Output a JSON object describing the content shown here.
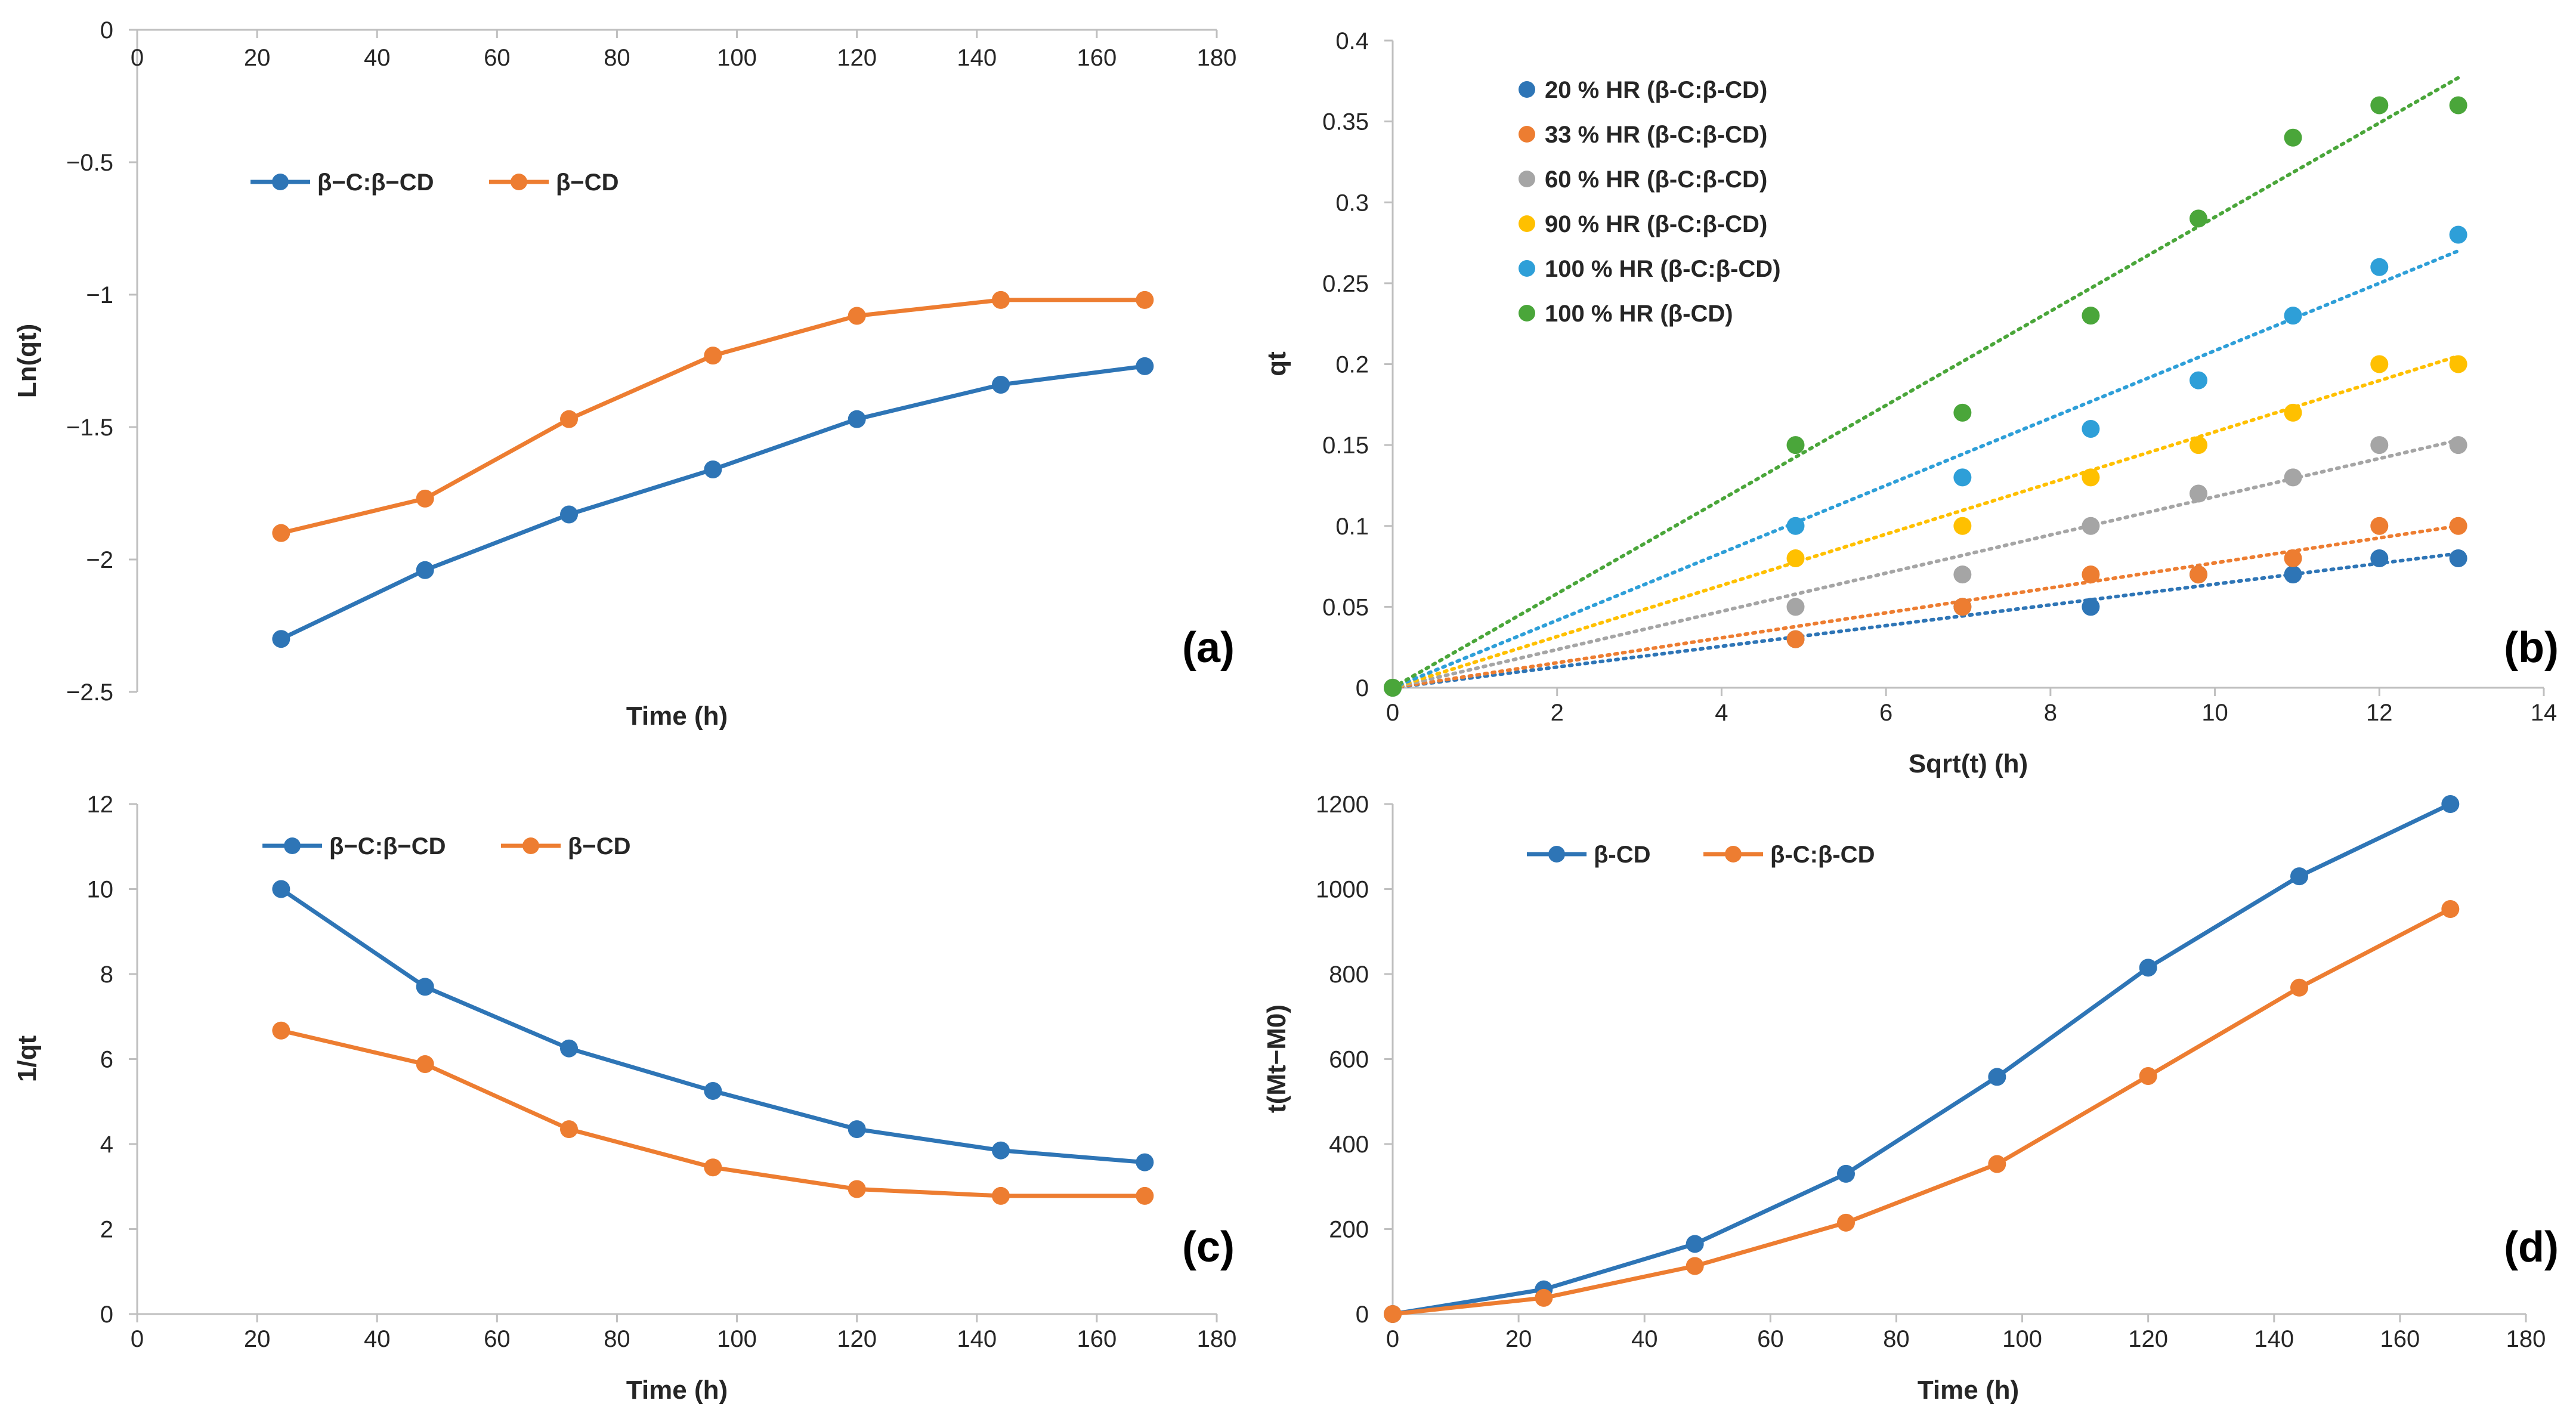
{
  "chart_data": [
    {
      "id": "a",
      "type": "line",
      "panel_label": "(a)",
      "xlabel": "Time (h)",
      "ylabel": "Ln(qt)",
      "xlim": [
        0,
        180
      ],
      "ylim": [
        -2.5,
        0
      ],
      "xticks": [
        0,
        20,
        40,
        60,
        80,
        100,
        120,
        140,
        160,
        180
      ],
      "yticks": [
        0,
        -0.5,
        -1,
        -1.5,
        -2,
        -2.5
      ],
      "ytick_labels": [
        "0",
        "−0.5",
        "−1",
        "−1.5",
        "−2",
        "−2.5"
      ],
      "x_axis_at_top": true,
      "legend_position": "top-left",
      "x": [
        24,
        48,
        72,
        96,
        120,
        144,
        168
      ],
      "series": [
        {
          "name": "β−C:β−CD",
          "color": "#2e75b6",
          "values": [
            -2.3,
            -2.04,
            -1.83,
            -1.66,
            -1.47,
            -1.34,
            -1.27
          ]
        },
        {
          "name": "β−CD",
          "color": "#ed7d31",
          "values": [
            -1.9,
            -1.77,
            -1.47,
            -1.23,
            -1.08,
            -1.02,
            -1.02
          ]
        }
      ]
    },
    {
      "id": "b",
      "type": "scatter",
      "panel_label": "(b)",
      "xlabel": "Sqrt(t) (h)",
      "ylabel": "qt",
      "xlim": [
        0,
        14
      ],
      "ylim": [
        0,
        0.4
      ],
      "xticks": [
        0,
        2,
        4,
        6,
        8,
        10,
        12,
        14
      ],
      "yticks": [
        0,
        0.05,
        0.1,
        0.15,
        0.2,
        0.25,
        0.3,
        0.35,
        0.4
      ],
      "ytick_labels": [
        "0",
        "0.05",
        "0.1",
        "0.15",
        "0.2",
        "0.25",
        "0.3",
        "0.35",
        "0.4"
      ],
      "legend_position": "top-left",
      "trendlines": "dotted linear fits through origin",
      "x": [
        0,
        4.9,
        6.93,
        8.49,
        9.8,
        10.95,
        12.0,
        12.96
      ],
      "series": [
        {
          "name": "20 % HR (β-C:β-CD)",
          "color": "#2e75b6",
          "values": [
            0,
            0.03,
            0.05,
            0.05,
            0.07,
            0.07,
            0.08,
            0.08
          ],
          "trend_end": 0.083
        },
        {
          "name": "33 % HR (β-C:β-CD)",
          "color": "#ed7d31",
          "values": [
            0,
            0.03,
            0.05,
            0.07,
            0.07,
            0.08,
            0.1,
            0.1
          ],
          "trend_end": 0.1
        },
        {
          "name": "60 % HR (β-C:β-CD)",
          "color": "#a5a5a5",
          "values": [
            0,
            0.05,
            0.07,
            0.1,
            0.12,
            0.13,
            0.15,
            0.15
          ],
          "trend_end": 0.153
        },
        {
          "name": "90 % HR (β-C:β-CD)",
          "color": "#ffc000",
          "values": [
            0,
            0.08,
            0.1,
            0.13,
            0.15,
            0.17,
            0.2,
            0.2
          ],
          "trend_end": 0.205
        },
        {
          "name": "100 % HR (β-C:β-CD)",
          "color": "#2e9fd8",
          "values": [
            0,
            0.1,
            0.13,
            0.16,
            0.19,
            0.23,
            0.26,
            0.28
          ],
          "trend_end": 0.27
        },
        {
          "name": "100 % HR (β-CD)",
          "color": "#4aa63a",
          "values": [
            0,
            0.15,
            0.17,
            0.23,
            0.29,
            0.34,
            0.36,
            0.36
          ],
          "trend_end": 0.377
        }
      ]
    },
    {
      "id": "c",
      "type": "line",
      "panel_label": "(c)",
      "xlabel": "Time (h)",
      "ylabel": "1/qt",
      "xlim": [
        0,
        180
      ],
      "ylim": [
        0,
        12
      ],
      "xticks": [
        0,
        20,
        40,
        60,
        80,
        100,
        120,
        140,
        160,
        180
      ],
      "yticks": [
        0,
        2,
        4,
        6,
        8,
        10,
        12
      ],
      "ytick_labels": [
        "0",
        "2",
        "4",
        "6",
        "8",
        "10",
        "12"
      ],
      "legend_position": "top-left",
      "x": [
        24,
        48,
        72,
        96,
        120,
        144,
        168
      ],
      "series": [
        {
          "name": "β−C:β−CD",
          "color": "#2e75b6",
          "values": [
            10.0,
            7.7,
            6.25,
            5.25,
            4.35,
            3.85,
            3.57
          ]
        },
        {
          "name": "β−CD",
          "color": "#ed7d31",
          "values": [
            6.67,
            5.88,
            4.35,
            3.45,
            2.94,
            2.78,
            2.78
          ]
        }
      ]
    },
    {
      "id": "d",
      "type": "line",
      "panel_label": "(d)",
      "xlabel": "Time (h)",
      "ylabel": "t(Mt−M0)",
      "xlim": [
        0,
        180
      ],
      "ylim": [
        0,
        1200
      ],
      "xticks": [
        0,
        20,
        40,
        60,
        80,
        100,
        120,
        140,
        160,
        180
      ],
      "yticks": [
        0,
        200,
        400,
        600,
        800,
        1000,
        1200
      ],
      "ytick_labels": [
        "0",
        "200",
        "400",
        "600",
        "800",
        "1000",
        "1200"
      ],
      "legend_position": "top-left",
      "x": [
        0,
        24,
        48,
        72,
        96,
        120,
        144,
        168
      ],
      "series": [
        {
          "name": "β-CD",
          "color": "#2e75b6",
          "values": [
            0,
            58,
            165,
            330,
            558,
            815,
            1030,
            1200
          ]
        },
        {
          "name": "β-C:β-CD",
          "color": "#ed7d31",
          "values": [
            0,
            38,
            113,
            215,
            353,
            560,
            768,
            953
          ]
        }
      ]
    }
  ]
}
